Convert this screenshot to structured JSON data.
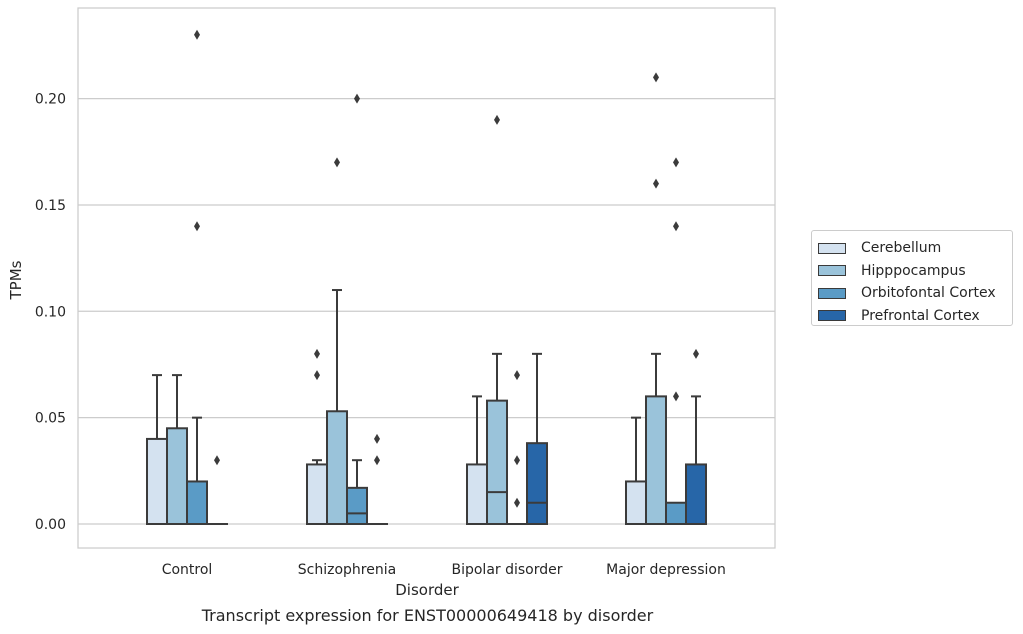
{
  "chart_data": {
    "type": "box",
    "caption": "Transcript expression for ENST00000649418 by disorder",
    "xlabel": "Disorder",
    "ylabel": "TPMs",
    "ylim": [
      -0.011,
      0.242
    ],
    "yticks": [
      0.0,
      0.05,
      0.1,
      0.15,
      0.2
    ],
    "ytick_labels": [
      "0.00",
      "0.05",
      "0.10",
      "0.15",
      "0.20"
    ],
    "grid": "horizontal",
    "legend_position": "right",
    "categories": [
      "Control",
      "Schizophrenia",
      "Bipolar disorder",
      "Major depression"
    ],
    "series": [
      {
        "name": "Cerebellum",
        "color": "#d4e2f0",
        "boxes": [
          {
            "q1": 0.0,
            "median": 0.0,
            "q3": 0.04,
            "whisker_low": 0.0,
            "whisker_high": 0.07,
            "outliers": []
          },
          {
            "q1": 0.0,
            "median": 0.0,
            "q3": 0.028,
            "whisker_low": 0.0,
            "whisker_high": 0.03,
            "outliers": [
              0.07,
              0.08
            ]
          },
          {
            "q1": 0.0,
            "median": 0.0,
            "q3": 0.028,
            "whisker_low": 0.0,
            "whisker_high": 0.06,
            "outliers": []
          },
          {
            "q1": 0.0,
            "median": 0.0,
            "q3": 0.02,
            "whisker_low": 0.0,
            "whisker_high": 0.05,
            "outliers": []
          }
        ]
      },
      {
        "name": "Hipppocampus",
        "color": "#9ac3da",
        "boxes": [
          {
            "q1": 0.0,
            "median": 0.0,
            "q3": 0.045,
            "whisker_low": 0.0,
            "whisker_high": 0.07,
            "outliers": []
          },
          {
            "q1": 0.0,
            "median": 0.0,
            "q3": 0.053,
            "whisker_low": 0.0,
            "whisker_high": 0.11,
            "outliers": [
              0.17
            ]
          },
          {
            "q1": 0.0,
            "median": 0.015,
            "q3": 0.058,
            "whisker_low": 0.0,
            "whisker_high": 0.08,
            "outliers": [
              0.19
            ]
          },
          {
            "q1": 0.0,
            "median": 0.0,
            "q3": 0.06,
            "whisker_low": 0.0,
            "whisker_high": 0.08,
            "outliers": [
              0.16,
              0.21
            ]
          }
        ]
      },
      {
        "name": "Orbitofontal Cortex",
        "color": "#5a9bc6",
        "boxes": [
          {
            "q1": 0.0,
            "median": 0.0,
            "q3": 0.02,
            "whisker_low": 0.0,
            "whisker_high": 0.05,
            "outliers": [
              0.14,
              0.23
            ]
          },
          {
            "q1": 0.0,
            "median": 0.005,
            "q3": 0.017,
            "whisker_low": 0.0,
            "whisker_high": 0.03,
            "outliers": [
              0.2
            ]
          },
          {
            "q1": 0.0,
            "median": 0.0,
            "q3": 0.0,
            "whisker_low": 0.0,
            "whisker_high": 0.0,
            "outliers": [
              0.01,
              0.03,
              0.07
            ]
          },
          {
            "q1": 0.0,
            "median": 0.0,
            "q3": 0.01,
            "whisker_low": 0.0,
            "whisker_high": 0.01,
            "outliers": [
              0.06,
              0.14,
              0.17
            ]
          }
        ]
      },
      {
        "name": "Prefrontal Cortex",
        "color": "#2766a8",
        "boxes": [
          {
            "q1": 0.0,
            "median": 0.0,
            "q3": 0.0,
            "whisker_low": 0.0,
            "whisker_high": 0.0,
            "outliers": [
              0.03
            ]
          },
          {
            "q1": 0.0,
            "median": 0.0,
            "q3": 0.0,
            "whisker_low": 0.0,
            "whisker_high": 0.0,
            "outliers": [
              0.03,
              0.04
            ]
          },
          {
            "q1": 0.0,
            "median": 0.01,
            "q3": 0.038,
            "whisker_low": 0.0,
            "whisker_high": 0.08,
            "outliers": []
          },
          {
            "q1": 0.0,
            "median": 0.0,
            "q3": 0.028,
            "whisker_low": 0.0,
            "whisker_high": 0.06,
            "outliers": [
              0.08
            ]
          }
        ]
      }
    ]
  }
}
